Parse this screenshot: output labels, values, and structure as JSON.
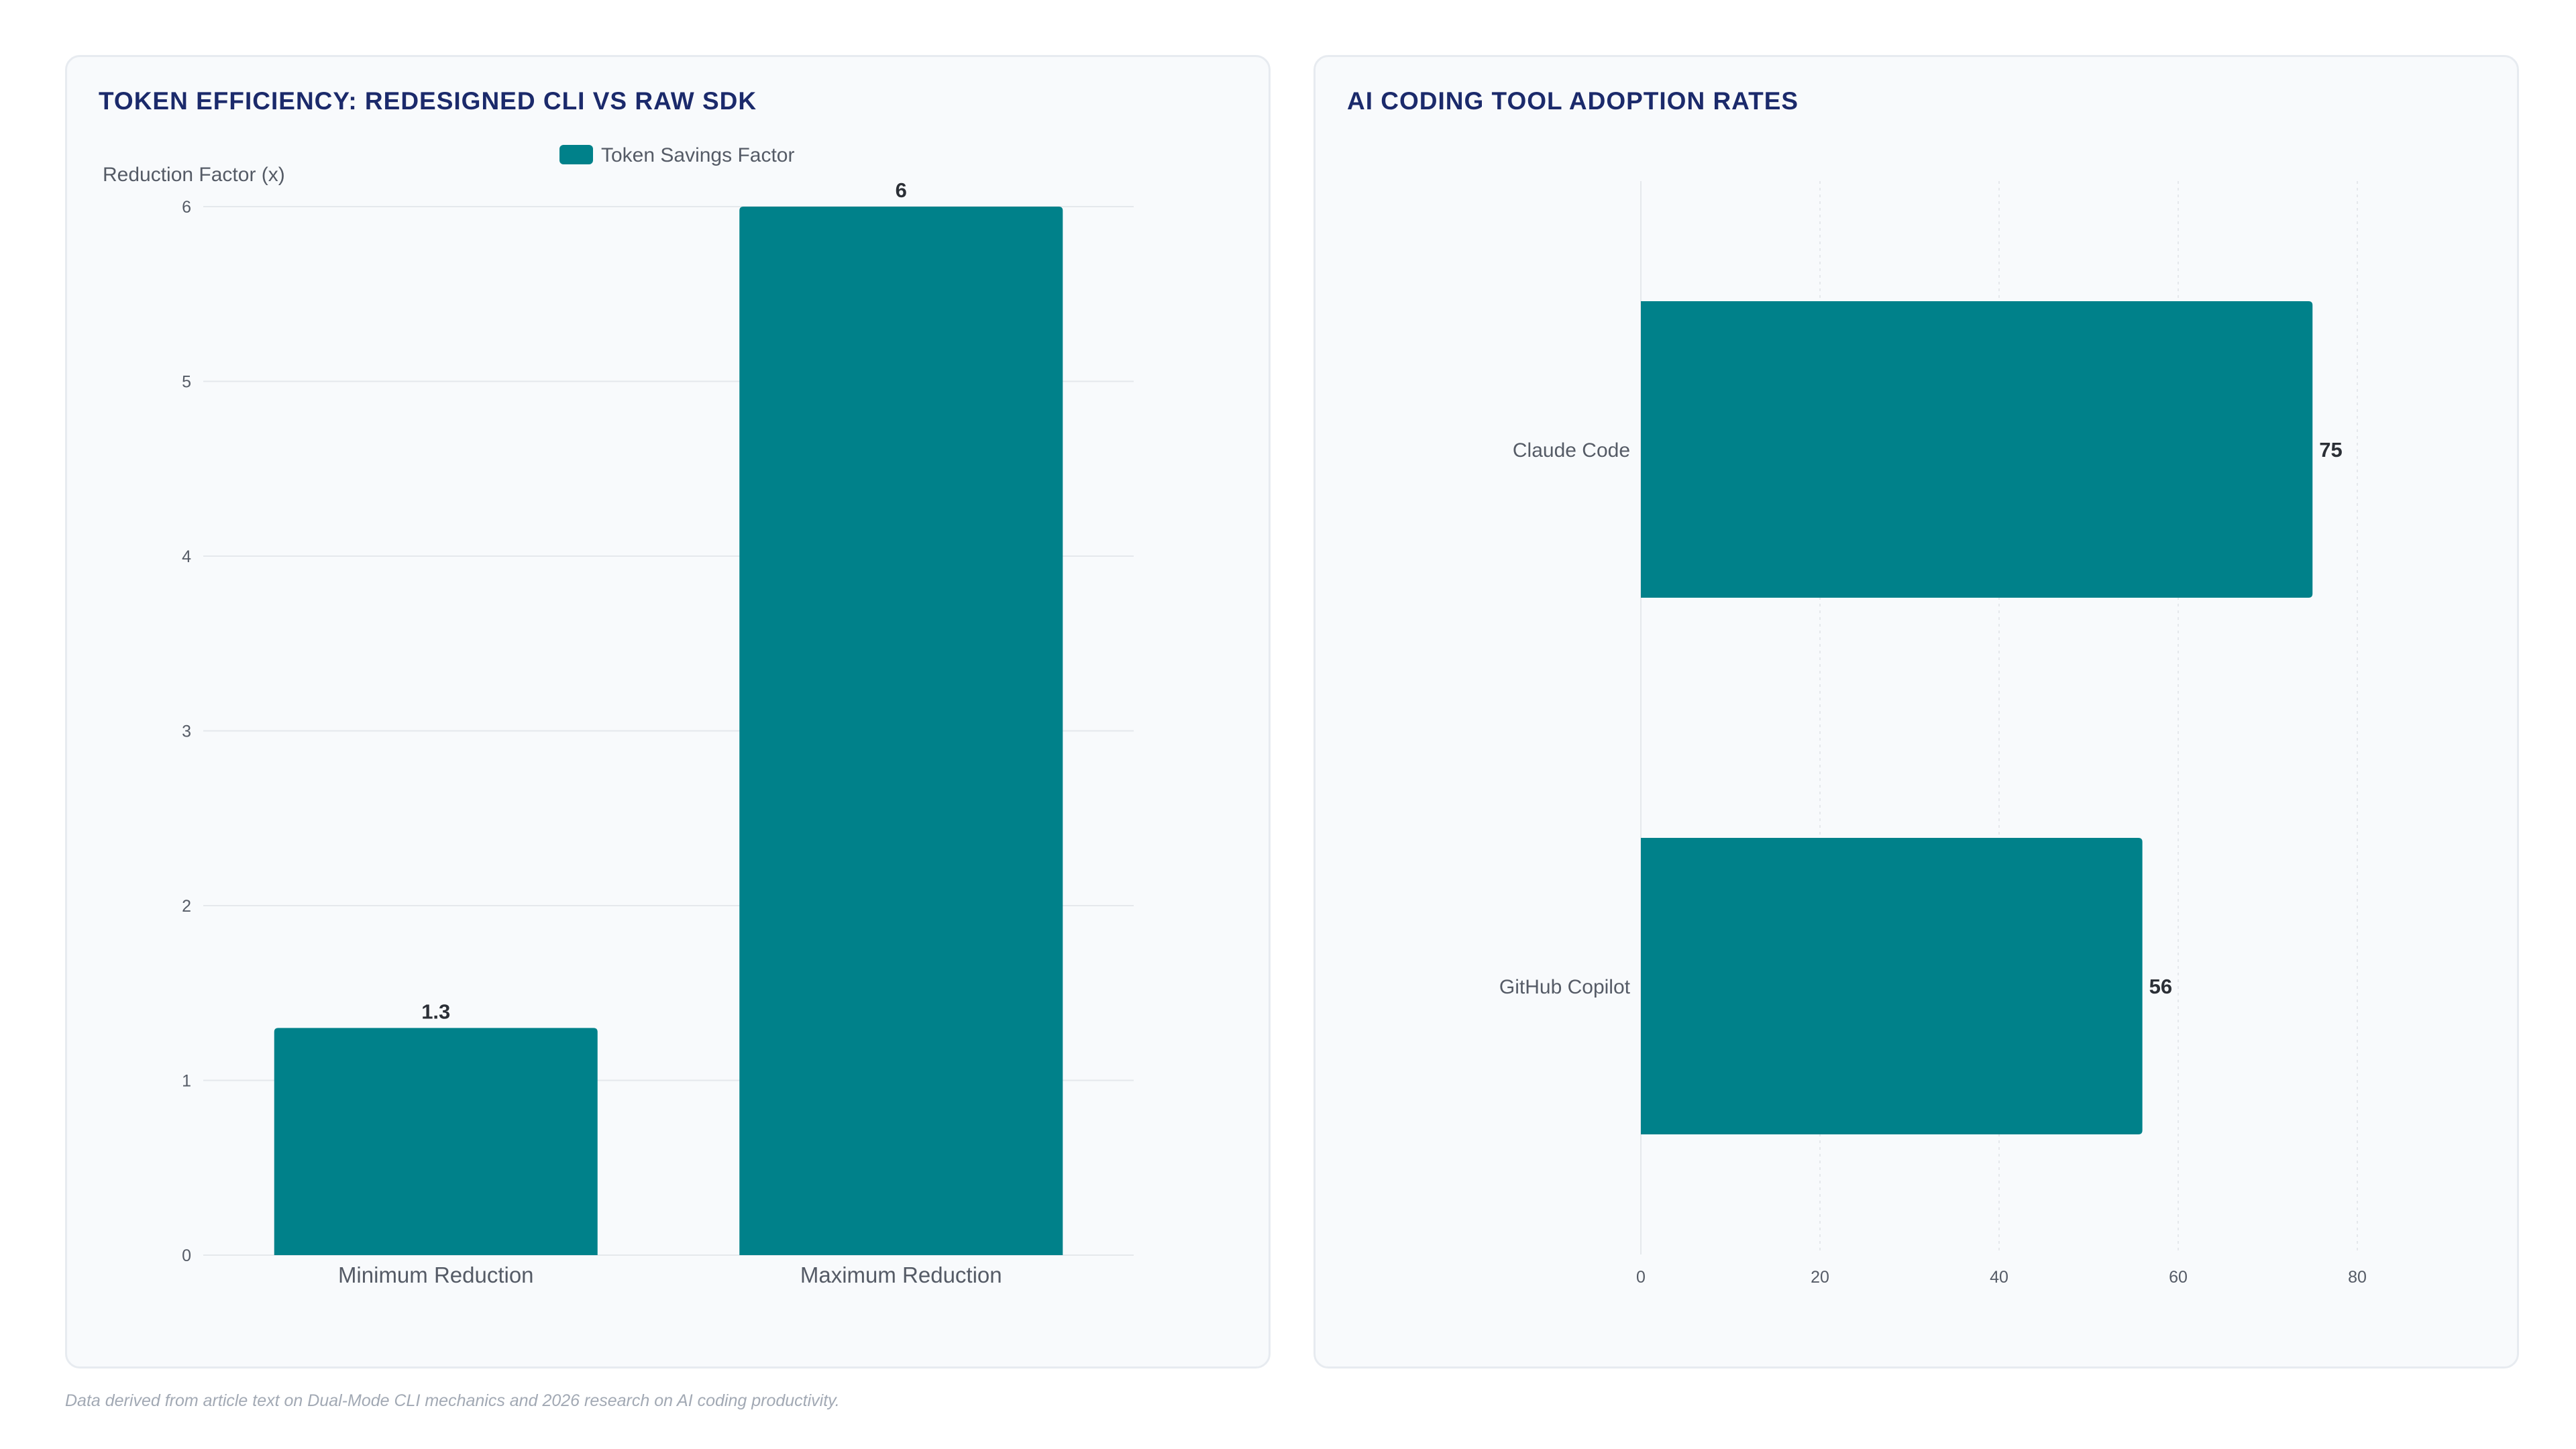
{
  "colors": {
    "bar": "#00818a",
    "title": "#1b2a6b",
    "tick_text": "#555b66",
    "value_text": "#2b2f36",
    "grid": "#e5e8ec"
  },
  "footnote": "Data derived from article text on Dual-Mode CLI mechanics and 2026 research on AI coding productivity.",
  "chart_data": [
    {
      "type": "bar",
      "orientation": "vertical",
      "title": "TOKEN EFFICIENCY: REDESIGNED CLI VS RAW SDK",
      "ylabel": "Reduction Factor (x)",
      "xlabel": "",
      "categories": [
        "Minimum Reduction",
        "Maximum Reduction"
      ],
      "series": [
        {
          "name": "Token Savings Factor",
          "values": [
            1.3,
            6
          ]
        }
      ],
      "value_labels": [
        "1.3",
        "6"
      ],
      "ylim": [
        0,
        6
      ],
      "yticks": [
        "0",
        "1",
        "2",
        "3",
        "4",
        "5",
        "6"
      ],
      "grid": true,
      "legend": "top-center"
    },
    {
      "type": "bar",
      "orientation": "horizontal",
      "title": "AI CODING TOOL ADOPTION RATES",
      "categories": [
        "Claude Code",
        "GitHub Copilot"
      ],
      "values": [
        75,
        56
      ],
      "value_labels": [
        "75",
        "56"
      ],
      "xlim": [
        0,
        80
      ],
      "xticks": [
        "0",
        "20",
        "40",
        "60",
        "80"
      ],
      "grid": true,
      "legend": "none"
    }
  ]
}
